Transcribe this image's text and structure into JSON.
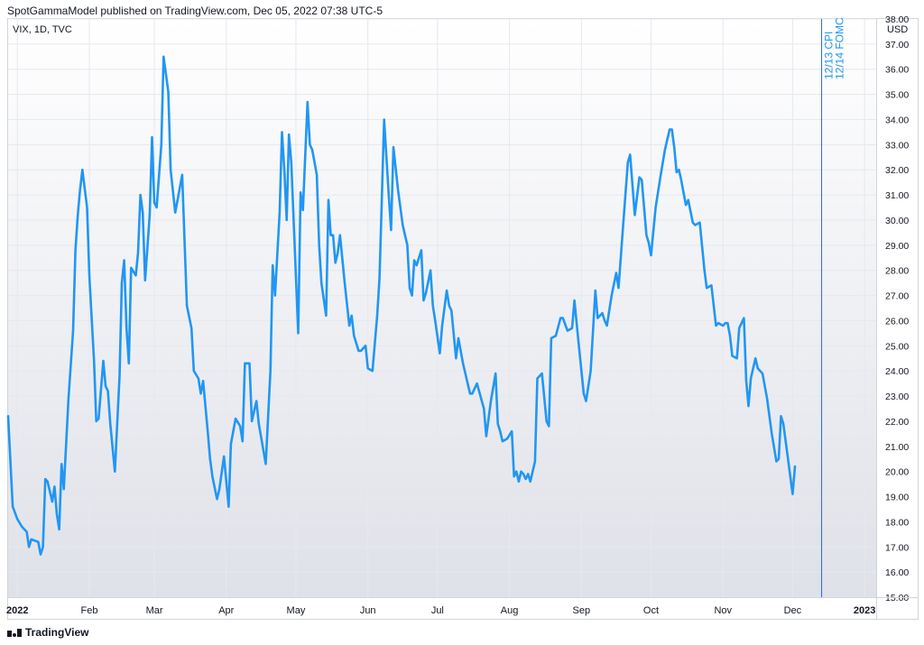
{
  "header": {
    "publisher_line": "SpotGammaModel published on TradingView.com, Dec 05, 2022 07:38 UTC-5"
  },
  "legend": {
    "symbol": "VIX, 1D, TVC"
  },
  "footer": {
    "brand": "TradingView"
  },
  "colors": {
    "line": "#2196f3",
    "event_line": "#2962ff",
    "grid": "#e6e8ee",
    "axis_text": "#131722"
  },
  "chart_data": {
    "type": "line",
    "currency": "USD",
    "ylim": [
      15,
      38
    ],
    "y_ticks": [
      "38.00",
      "37.00",
      "36.00",
      "35.00",
      "34.00",
      "33.00",
      "32.00",
      "31.00",
      "30.00",
      "29.00",
      "28.00",
      "27.00",
      "26.00",
      "25.00",
      "24.00",
      "23.00",
      "22.00",
      "21.00",
      "20.00",
      "19.00",
      "18.00",
      "17.00",
      "16.00",
      "15.00"
    ],
    "y_tick_values": [
      38,
      37,
      36,
      35,
      34,
      33,
      32,
      31,
      30,
      29,
      28,
      27,
      26,
      25,
      24,
      23,
      22,
      21,
      20,
      19,
      18,
      17,
      16,
      15
    ],
    "xlim": [
      "2021-12-28",
      "2023-01-06"
    ],
    "x_ticks": [
      {
        "label": "2022",
        "date": "2022-01-01",
        "bold": true
      },
      {
        "label": "Feb",
        "date": "2022-02-01"
      },
      {
        "label": "Mar",
        "date": "2022-03-01"
      },
      {
        "label": "Apr",
        "date": "2022-04-01"
      },
      {
        "label": "May",
        "date": "2022-05-01"
      },
      {
        "label": "Jun",
        "date": "2022-06-01"
      },
      {
        "label": "Jul",
        "date": "2022-07-01"
      },
      {
        "label": "Aug",
        "date": "2022-08-01"
      },
      {
        "label": "Sep",
        "date": "2022-09-01"
      },
      {
        "label": "Oct",
        "date": "2022-10-01"
      },
      {
        "label": "Nov",
        "date": "2022-11-01"
      },
      {
        "label": "Dec",
        "date": "2022-12-01"
      },
      {
        "label": "2023",
        "date": "2023-01-01",
        "bold": true
      }
    ],
    "annotations": [
      {
        "date": "2022-12-13",
        "text": "12/13 CPI"
      },
      {
        "date": "2022-12-14",
        "text": "12/14 FOMC"
      }
    ],
    "series": [
      {
        "points": [
          [
            "2021-12-28",
            22.2
          ],
          [
            "2021-12-30",
            18.6
          ],
          [
            "2022-01-01",
            18.1
          ],
          [
            "2022-01-03",
            17.8
          ],
          [
            "2022-01-05",
            17.6
          ],
          [
            "2022-01-06",
            17.0
          ],
          [
            "2022-01-07",
            17.3
          ],
          [
            "2022-01-10",
            17.2
          ],
          [
            "2022-01-11",
            16.7
          ],
          [
            "2022-01-12",
            17.0
          ],
          [
            "2022-01-13",
            19.7
          ],
          [
            "2022-01-14",
            19.6
          ],
          [
            "2022-01-16",
            18.8
          ],
          [
            "2022-01-17",
            19.4
          ],
          [
            "2022-01-18",
            18.3
          ],
          [
            "2022-01-19",
            17.7
          ],
          [
            "2022-01-20",
            20.3
          ],
          [
            "2022-01-21",
            19.3
          ],
          [
            "2022-01-23",
            22.9
          ],
          [
            "2022-01-25",
            25.6
          ],
          [
            "2022-01-26",
            28.8
          ],
          [
            "2022-01-27",
            30.2
          ],
          [
            "2022-01-28",
            31.2
          ],
          [
            "2022-01-29",
            32.0
          ],
          [
            "2022-01-31",
            30.5
          ],
          [
            "2022-02-01",
            27.8
          ],
          [
            "2022-02-03",
            24.4
          ],
          [
            "2022-02-04",
            22.0
          ],
          [
            "2022-02-05",
            22.1
          ],
          [
            "2022-02-07",
            24.4
          ],
          [
            "2022-02-08",
            23.4
          ],
          [
            "2022-02-09",
            23.2
          ],
          [
            "2022-02-10",
            21.9
          ],
          [
            "2022-02-12",
            20.0
          ],
          [
            "2022-02-14",
            23.8
          ],
          [
            "2022-02-15",
            27.5
          ],
          [
            "2022-02-16",
            28.4
          ],
          [
            "2022-02-17",
            25.7
          ],
          [
            "2022-02-18",
            24.3
          ],
          [
            "2022-02-19",
            28.1
          ],
          [
            "2022-02-21",
            27.8
          ],
          [
            "2022-02-22",
            28.7
          ],
          [
            "2022-02-23",
            31.0
          ],
          [
            "2022-02-24",
            30.3
          ],
          [
            "2022-02-25",
            27.6
          ],
          [
            "2022-02-27",
            30.2
          ],
          [
            "2022-02-28",
            33.3
          ],
          [
            "2022-03-01",
            30.7
          ],
          [
            "2022-03-02",
            30.5
          ],
          [
            "2022-03-04",
            33.0
          ],
          [
            "2022-03-05",
            36.5
          ],
          [
            "2022-03-07",
            35.1
          ],
          [
            "2022-03-08",
            32.0
          ],
          [
            "2022-03-10",
            30.3
          ],
          [
            "2022-03-11",
            30.8
          ],
          [
            "2022-03-13",
            31.8
          ],
          [
            "2022-03-15",
            26.6
          ],
          [
            "2022-03-17",
            25.7
          ],
          [
            "2022-03-18",
            24.0
          ],
          [
            "2022-03-20",
            23.7
          ],
          [
            "2022-03-21",
            23.1
          ],
          [
            "2022-03-22",
            23.6
          ],
          [
            "2022-03-24",
            21.6
          ],
          [
            "2022-03-25",
            20.5
          ],
          [
            "2022-03-26",
            19.8
          ],
          [
            "2022-03-28",
            18.9
          ],
          [
            "2022-03-29",
            19.3
          ],
          [
            "2022-03-31",
            20.6
          ],
          [
            "2022-04-01",
            19.6
          ],
          [
            "2022-04-02",
            18.6
          ],
          [
            "2022-04-03",
            21.1
          ],
          [
            "2022-04-05",
            22.1
          ],
          [
            "2022-04-07",
            21.8
          ],
          [
            "2022-04-08",
            21.2
          ],
          [
            "2022-04-09",
            24.3
          ],
          [
            "2022-04-11",
            24.3
          ],
          [
            "2022-04-12",
            22.0
          ],
          [
            "2022-04-14",
            22.8
          ],
          [
            "2022-04-15",
            21.9
          ],
          [
            "2022-04-18",
            20.3
          ],
          [
            "2022-04-20",
            24.0
          ],
          [
            "2022-04-21",
            28.2
          ],
          [
            "2022-04-22",
            27.0
          ],
          [
            "2022-04-24",
            30.3
          ],
          [
            "2022-04-25",
            33.5
          ],
          [
            "2022-04-26",
            32.0
          ],
          [
            "2022-04-27",
            30.0
          ],
          [
            "2022-04-28",
            33.4
          ],
          [
            "2022-04-29",
            32.3
          ],
          [
            "2022-05-02",
            25.5
          ],
          [
            "2022-05-03",
            31.1
          ],
          [
            "2022-05-04",
            30.4
          ],
          [
            "2022-05-06",
            34.7
          ],
          [
            "2022-05-07",
            33.0
          ],
          [
            "2022-05-08",
            32.8
          ],
          [
            "2022-05-10",
            31.8
          ],
          [
            "2022-05-11",
            29.0
          ],
          [
            "2022-05-12",
            27.5
          ],
          [
            "2022-05-14",
            26.2
          ],
          [
            "2022-05-15",
            30.8
          ],
          [
            "2022-05-16",
            29.4
          ],
          [
            "2022-05-17",
            29.4
          ],
          [
            "2022-05-18",
            28.3
          ],
          [
            "2022-05-19",
            28.7
          ],
          [
            "2022-05-20",
            29.4
          ],
          [
            "2022-05-22",
            27.5
          ],
          [
            "2022-05-24",
            25.8
          ],
          [
            "2022-05-25",
            26.2
          ],
          [
            "2022-05-26",
            25.4
          ],
          [
            "2022-05-28",
            24.8
          ],
          [
            "2022-05-29",
            24.8
          ],
          [
            "2022-05-31",
            25.0
          ],
          [
            "2022-06-01",
            24.1
          ],
          [
            "2022-06-03",
            24.0
          ],
          [
            "2022-06-05",
            26.2
          ],
          [
            "2022-06-06",
            27.7
          ],
          [
            "2022-06-08",
            34.0
          ],
          [
            "2022-06-10",
            31.0
          ],
          [
            "2022-06-11",
            29.6
          ],
          [
            "2022-06-12",
            32.9
          ],
          [
            "2022-06-14",
            31.2
          ],
          [
            "2022-06-16",
            29.8
          ],
          [
            "2022-06-18",
            29.0
          ],
          [
            "2022-06-19",
            27.3
          ],
          [
            "2022-06-20",
            27.0
          ],
          [
            "2022-06-21",
            28.4
          ],
          [
            "2022-06-22",
            28.2
          ],
          [
            "2022-06-24",
            28.8
          ],
          [
            "2022-06-25",
            26.8
          ],
          [
            "2022-06-26",
            27.1
          ],
          [
            "2022-06-28",
            28.0
          ],
          [
            "2022-06-29",
            26.6
          ],
          [
            "2022-06-30",
            26.0
          ],
          [
            "2022-07-02",
            24.7
          ],
          [
            "2022-07-03",
            25.8
          ],
          [
            "2022-07-05",
            27.2
          ],
          [
            "2022-07-06",
            26.6
          ],
          [
            "2022-07-07",
            26.4
          ],
          [
            "2022-07-09",
            24.5
          ],
          [
            "2022-07-10",
            25.3
          ],
          [
            "2022-07-12",
            24.3
          ],
          [
            "2022-07-15",
            23.1
          ],
          [
            "2022-07-16",
            23.1
          ],
          [
            "2022-07-18",
            23.5
          ],
          [
            "2022-07-21",
            22.5
          ],
          [
            "2022-07-22",
            21.4
          ],
          [
            "2022-07-24",
            22.8
          ],
          [
            "2022-07-26",
            23.9
          ],
          [
            "2022-07-27",
            21.9
          ],
          [
            "2022-07-28",
            21.6
          ],
          [
            "2022-07-29",
            21.2
          ],
          [
            "2022-07-31",
            21.3
          ],
          [
            "2022-08-02",
            21.6
          ],
          [
            "2022-08-03",
            19.8
          ],
          [
            "2022-08-04",
            20.0
          ],
          [
            "2022-08-05",
            19.6
          ],
          [
            "2022-08-06",
            20.0
          ],
          [
            "2022-08-07",
            19.9
          ],
          [
            "2022-08-08",
            19.7
          ],
          [
            "2022-08-09",
            19.9
          ],
          [
            "2022-08-10",
            19.6
          ],
          [
            "2022-08-12",
            20.4
          ],
          [
            "2022-08-13",
            23.7
          ],
          [
            "2022-08-15",
            23.9
          ],
          [
            "2022-08-17",
            22.0
          ],
          [
            "2022-08-18",
            21.8
          ],
          [
            "2022-08-19",
            25.3
          ],
          [
            "2022-08-21",
            25.4
          ],
          [
            "2022-08-23",
            26.1
          ],
          [
            "2022-08-24",
            26.1
          ],
          [
            "2022-08-26",
            25.6
          ],
          [
            "2022-08-28",
            25.7
          ],
          [
            "2022-08-29",
            26.8
          ],
          [
            "2022-08-31",
            24.9
          ],
          [
            "2022-09-02",
            23.1
          ],
          [
            "2022-09-03",
            22.8
          ],
          [
            "2022-09-05",
            24.0
          ],
          [
            "2022-09-07",
            27.2
          ],
          [
            "2022-09-08",
            26.1
          ],
          [
            "2022-09-10",
            26.3
          ],
          [
            "2022-09-11",
            26.0
          ],
          [
            "2022-09-12",
            25.8
          ],
          [
            "2022-09-14",
            27.0
          ],
          [
            "2022-09-16",
            27.9
          ],
          [
            "2022-09-17",
            27.3
          ],
          [
            "2022-09-19",
            29.8
          ],
          [
            "2022-09-21",
            32.3
          ],
          [
            "2022-09-22",
            32.6
          ],
          [
            "2022-09-24",
            30.2
          ],
          [
            "2022-09-26",
            31.7
          ],
          [
            "2022-09-27",
            31.6
          ],
          [
            "2022-09-29",
            29.4
          ],
          [
            "2022-09-30",
            29.1
          ],
          [
            "2022-10-01",
            28.6
          ],
          [
            "2022-10-03",
            30.5
          ],
          [
            "2022-10-05",
            31.7
          ],
          [
            "2022-10-07",
            32.8
          ],
          [
            "2022-10-09",
            33.6
          ],
          [
            "2022-10-10",
            33.6
          ],
          [
            "2022-10-11",
            32.9
          ],
          [
            "2022-10-12",
            31.9
          ],
          [
            "2022-10-13",
            32.0
          ],
          [
            "2022-10-14",
            31.6
          ],
          [
            "2022-10-16",
            30.6
          ],
          [
            "2022-10-17",
            30.8
          ],
          [
            "2022-10-19",
            29.9
          ],
          [
            "2022-10-20",
            29.8
          ],
          [
            "2022-10-22",
            29.9
          ],
          [
            "2022-10-24",
            28.0
          ],
          [
            "2022-10-25",
            27.3
          ],
          [
            "2022-10-27",
            27.4
          ],
          [
            "2022-10-29",
            25.8
          ],
          [
            "2022-10-30",
            25.9
          ],
          [
            "2022-11-01",
            25.8
          ],
          [
            "2022-11-02",
            25.9
          ],
          [
            "2022-11-03",
            25.9
          ],
          [
            "2022-11-04",
            25.4
          ],
          [
            "2022-11-05",
            24.6
          ],
          [
            "2022-11-07",
            24.5
          ],
          [
            "2022-11-08",
            25.7
          ],
          [
            "2022-11-10",
            26.1
          ],
          [
            "2022-11-11",
            23.6
          ],
          [
            "2022-11-12",
            22.6
          ],
          [
            "2022-11-13",
            23.7
          ],
          [
            "2022-11-15",
            24.5
          ],
          [
            "2022-11-16",
            24.1
          ],
          [
            "2022-11-18",
            23.9
          ],
          [
            "2022-11-20",
            22.9
          ],
          [
            "2022-11-22",
            21.5
          ],
          [
            "2022-11-24",
            20.4
          ],
          [
            "2022-11-25",
            20.5
          ],
          [
            "2022-11-26",
            22.2
          ],
          [
            "2022-11-27",
            21.9
          ],
          [
            "2022-11-29",
            20.5
          ],
          [
            "2022-11-30",
            19.8
          ],
          [
            "2022-12-01",
            19.1
          ],
          [
            "2022-12-02",
            20.2
          ]
        ]
      }
    ]
  }
}
